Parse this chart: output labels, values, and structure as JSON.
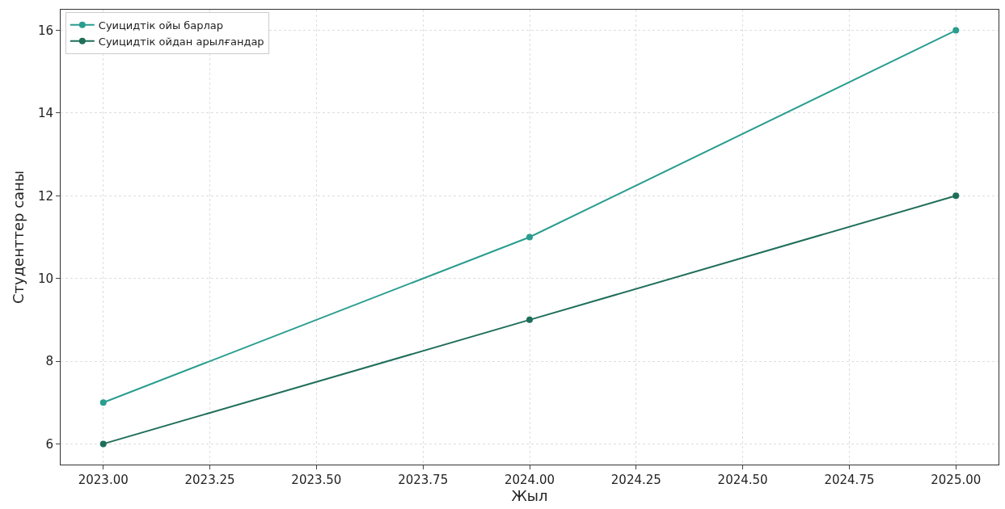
{
  "chart_data": {
    "type": "line",
    "xlabel": "Жыл",
    "ylabel": "Студенттер саны",
    "x": [
      2023,
      2024,
      2025
    ],
    "series": [
      {
        "name": "Суицидтік ойы барлар",
        "color": "#2a9d8f",
        "values": [
          7,
          11,
          16
        ]
      },
      {
        "name": "Суицидтік ойдан арылғандар",
        "color": "#1f6e5a",
        "values": [
          6,
          9,
          12
        ]
      }
    ],
    "xlim": [
      2022.9,
      2025.1
    ],
    "xticks": [
      {
        "value": 2023,
        "label": "2023.00"
      },
      {
        "value": 2023.25,
        "label": "2023.25"
      },
      {
        "value": 2023.5,
        "label": "2023.50"
      },
      {
        "value": 2023.75,
        "label": "2023.75"
      },
      {
        "value": 2024,
        "label": "2024.00"
      },
      {
        "value": 2024.25,
        "label": "2024.25"
      },
      {
        "value": 2024.5,
        "label": "2024.50"
      },
      {
        "value": 2024.75,
        "label": "2024.75"
      },
      {
        "value": 2025,
        "label": "2025.00"
      }
    ],
    "ylim": [
      5.5,
      16.5
    ],
    "yticks": [
      6,
      8,
      10,
      12,
      14,
      16
    ],
    "grid": true,
    "legend": "top left",
    "marker": "circle",
    "line_style": "solid"
  }
}
